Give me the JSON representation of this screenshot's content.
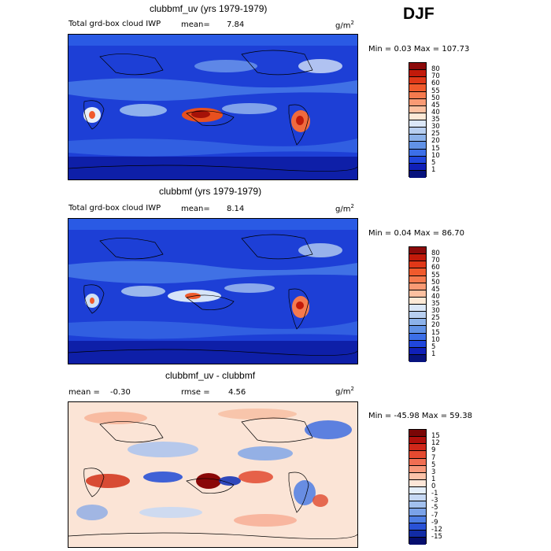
{
  "season": "DJF",
  "panels": [
    {
      "title": "clubbmf_uv (yrs 1979-1979)",
      "variable": "Total grd-box cloud IWP",
      "mean_label": "mean=",
      "mean_value": "7.84",
      "units": "g/m",
      "units_sup": "2",
      "minmax": "Min =   0.03 Max = 107.73",
      "levels": [
        "80",
        "70",
        "60",
        "55",
        "50",
        "45",
        "40",
        "35",
        "30",
        "25",
        "20",
        "15",
        "10",
        "5",
        "1"
      ],
      "colors": [
        "#8c0a0a",
        "#c21a0a",
        "#e03818",
        "#f05a2c",
        "#f57a4e",
        "#f99a74",
        "#fcc0a0",
        "#fde9d6",
        "#dbe7f7",
        "#b8cff0",
        "#8cb2ea",
        "#6192e6",
        "#3c6fe8",
        "#2046dc",
        "#1020b8",
        "#07137e"
      ]
    },
    {
      "title": "clubbmf (yrs 1979-1979)",
      "variable": "Total grd-box cloud IWP",
      "mean_label": "mean=",
      "mean_value": "8.14",
      "units": "g/m",
      "units_sup": "2",
      "minmax": "Min =   0.04 Max =  86.70",
      "levels": [
        "80",
        "70",
        "60",
        "55",
        "50",
        "45",
        "40",
        "35",
        "30",
        "25",
        "20",
        "15",
        "10",
        "5",
        "1"
      ],
      "colors": [
        "#8c0a0a",
        "#c21a0a",
        "#e03818",
        "#f05a2c",
        "#f57a4e",
        "#f99a74",
        "#fcc0a0",
        "#fde9d6",
        "#dbe7f7",
        "#b8cff0",
        "#8cb2ea",
        "#6192e6",
        "#3c6fe8",
        "#2046dc",
        "#1020b8",
        "#07137e"
      ]
    },
    {
      "title": "clubbmf_uv - clubbmf",
      "mean_label": "mean =",
      "mean_value": "-0.30",
      "rmse_label": "rmse =",
      "rmse_value": "4.56",
      "units": "g/m",
      "units_sup": "2",
      "minmax": "Min = -45.98 Max =  59.38",
      "levels": [
        "15",
        "12",
        "9",
        "7",
        "5",
        "3",
        "1",
        "0",
        "-1",
        "-3",
        "-5",
        "-7",
        "-9",
        "-12",
        "-15"
      ],
      "colors": [
        "#7a0606",
        "#b0100c",
        "#d0281a",
        "#e44a30",
        "#f06e52",
        "#f7987a",
        "#fbc2a8",
        "#fde6d8",
        "#e4eefa",
        "#c6d8f4",
        "#a2c0ee",
        "#7aa2e8",
        "#4e7ee4",
        "#2a52d6",
        "#122ca6",
        "#060e6e"
      ]
    }
  ]
}
